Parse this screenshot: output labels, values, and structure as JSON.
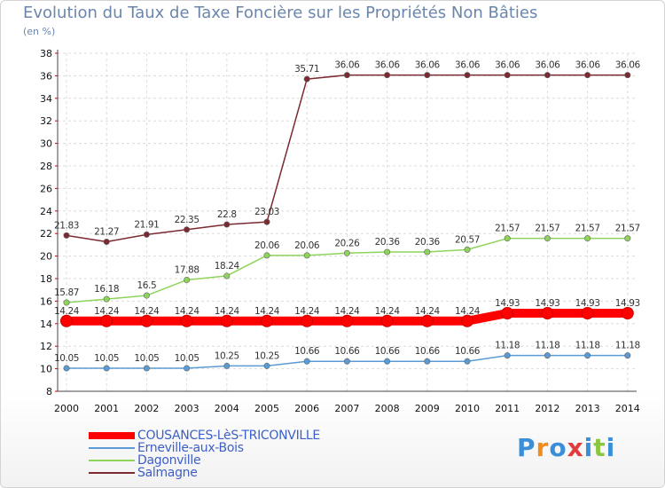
{
  "chart_data": {
    "type": "line",
    "title": "Evolution du Taux de Taxe Foncière sur les Propriétés Non Bâties",
    "ylabel": "(en %)",
    "xlabel": "",
    "x": [
      "2000",
      "2001",
      "2002",
      "2003",
      "2004",
      "2005",
      "2006",
      "2007",
      "2008",
      "2009",
      "2010",
      "2011",
      "2012",
      "2013",
      "2014"
    ],
    "ylim": [
      8,
      38
    ],
    "yticks": [
      "8",
      "10",
      "12",
      "14",
      "16",
      "18",
      "20",
      "22",
      "24",
      "26",
      "28",
      "30",
      "32",
      "34",
      "36",
      "38"
    ],
    "grid": true,
    "legend_position": "bottom-left",
    "series": [
      {
        "name": "COUSANCES-LèS-TRICONVILLE",
        "color": "#ff0000",
        "values": [
          14.24,
          14.24,
          14.24,
          14.24,
          14.24,
          14.24,
          14.24,
          14.24,
          14.24,
          14.24,
          14.24,
          14.93,
          14.93,
          14.93,
          14.93
        ],
        "labels": [
          "14.24",
          "14.24",
          "14.24",
          "14.24",
          "14.24",
          "14.24",
          "14.24",
          "14.24",
          "14.24",
          "14.24",
          "14.24",
          "14.93",
          "14.93",
          "14.93",
          "14.93"
        ]
      },
      {
        "name": "Erneville-aux-Bois",
        "color": "#5b9bd5",
        "values": [
          10.05,
          10.05,
          10.05,
          10.05,
          10.25,
          10.25,
          10.66,
          10.66,
          10.66,
          10.66,
          10.66,
          11.18,
          11.18,
          11.18,
          11.18
        ],
        "labels": [
          "10.05",
          "10.05",
          "10.05",
          "10.05",
          "10.25",
          "10.25",
          "10.66",
          "10.66",
          "10.66",
          "10.66",
          "10.66",
          "11.18",
          "11.18",
          "11.18",
          "11.18"
        ]
      },
      {
        "name": "Dagonville",
        "color": "#8ed45a",
        "values": [
          15.87,
          16.18,
          16.5,
          17.88,
          18.24,
          20.06,
          20.06,
          20.26,
          20.36,
          20.36,
          20.57,
          21.57,
          21.57,
          21.57,
          21.57
        ],
        "labels": [
          "15.87",
          "16.18",
          "16.5",
          "17.88",
          "18.24",
          "20.06",
          "20.06",
          "20.26",
          "20.36",
          "20.36",
          "20.57",
          "21.57",
          "21.57",
          "21.57",
          "21.57"
        ]
      },
      {
        "name": "Salmagne",
        "color": "#7b2a32",
        "values": [
          21.83,
          21.27,
          21.91,
          22.35,
          22.8,
          23.03,
          35.71,
          36.06,
          36.06,
          36.06,
          36.06,
          36.06,
          36.06,
          36.06,
          36.06
        ],
        "labels": [
          "21.83",
          "21.27",
          "21.91",
          "22.35",
          "22.8",
          "23.03",
          "35.71",
          "36.06",
          "36.06",
          "36.06",
          "36.06",
          "36.06",
          "36.06",
          "36.06",
          "36.06"
        ]
      }
    ]
  },
  "logo": {
    "letters": [
      "P",
      "r",
      "o",
      "x",
      "i",
      "t",
      "i"
    ],
    "colors": [
      "#3a8fd8",
      "#f28c1e",
      "#3a8fd8",
      "#e23b3b",
      "#3a8fd8",
      "#8cc63f",
      "#3a8fd8"
    ]
  }
}
